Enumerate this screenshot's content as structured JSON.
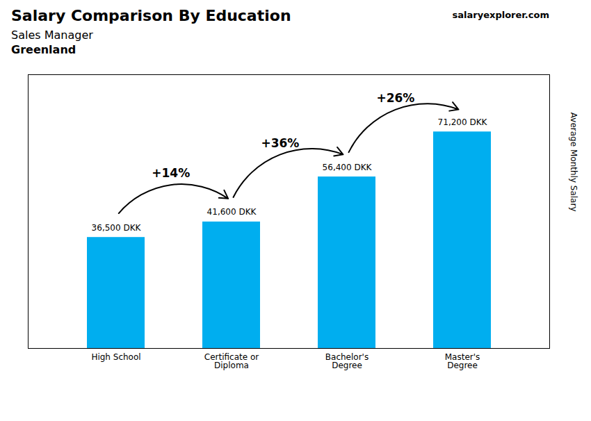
{
  "chart_data": {
    "type": "bar",
    "title": "Salary Comparison By Education",
    "subtitle": [
      "Sales Manager",
      "Greenland"
    ],
    "ylabel": "Average Monthly Salary",
    "categories": [
      "High School",
      "Certificate or\nDiploma",
      "Bachelor's\nDegree",
      "Master's\nDegree"
    ],
    "values": [
      36500,
      41600,
      56400,
      71200
    ],
    "value_labels": [
      "36,500 DKK",
      "41,600 DKK",
      "56,400 DKK",
      "71,200 DKK"
    ],
    "data_labels": true,
    "color": "#00AEEF",
    "ylim": [
      0,
      90000
    ],
    "tick_labels": "x",
    "grid": false,
    "annotations": [
      {
        "text": "+14%",
        "from": "High School",
        "to": "Certificate or\nDiploma"
      },
      {
        "text": "+36%",
        "from": "Certificate or\nDiploma",
        "to": "Bachelor's\nDegree"
      },
      {
        "text": "+26%",
        "from": "Bachelor's\nDegree",
        "to": "Master's\nDegree"
      },
      {
        "text": "salaryexplorer.com"
      }
    ]
  }
}
